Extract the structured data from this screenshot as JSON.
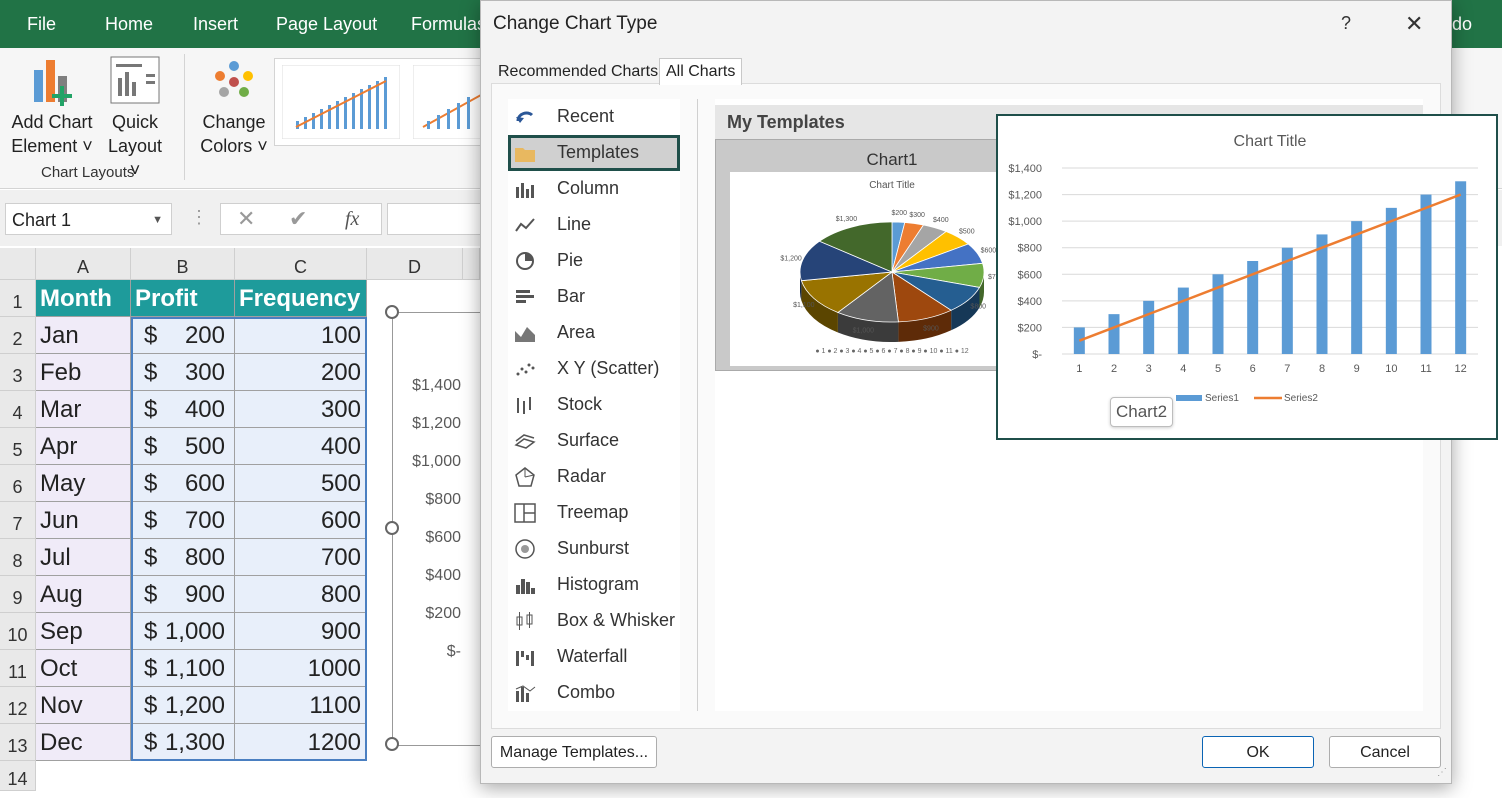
{
  "ribbon": {
    "tabs": [
      "File",
      "Home",
      "Insert",
      "Page Layout",
      "Formulas"
    ],
    "right_partial": "do",
    "add_chart_element": [
      "Add Chart",
      "Element ˅"
    ],
    "quick_layout": [
      "Quick",
      "Layout ˅"
    ],
    "change_colors": [
      "Change",
      "Colors ˅"
    ],
    "group_label": "Chart Layouts"
  },
  "formula_bar": {
    "name_box": "Chart 1",
    "fx": "fx"
  },
  "sheet": {
    "columns": [
      "A",
      "B",
      "C",
      "D"
    ],
    "rows": [
      "1",
      "2",
      "3",
      "4",
      "5",
      "6",
      "7",
      "8",
      "9",
      "10",
      "11",
      "12",
      "13",
      "14"
    ],
    "headers": [
      "Month",
      "Profit",
      "Frequency"
    ],
    "months": [
      "Jan",
      "Feb",
      "Mar",
      "Apr",
      "May",
      "Jun",
      "Jul",
      "Aug",
      "Sep",
      "Oct",
      "Nov",
      "Dec"
    ],
    "profit_symbols": [
      "$",
      "$",
      "$",
      "$",
      "$",
      "$",
      "$",
      "$",
      "$",
      "$",
      "$",
      "$"
    ],
    "profit_values": [
      "200",
      "300",
      "400",
      "500",
      "600",
      "700",
      "800",
      "900",
      "1,000",
      "1,100",
      "1,200",
      "1,300"
    ],
    "frequency": [
      "100",
      "200",
      "300",
      "400",
      "500",
      "600",
      "700",
      "800",
      "900",
      "1000",
      "1100",
      "1200"
    ],
    "embedded_axis": [
      "$1,400",
      "$1,200",
      "$1,000",
      "$800",
      "$600",
      "$400",
      "$200",
      "$-"
    ]
  },
  "dialog": {
    "title": "Change Chart Type",
    "help": "?",
    "close": "✕",
    "tabs": [
      "Recommended Charts",
      "All Charts"
    ],
    "chart_types": [
      "Recent",
      "Templates",
      "Column",
      "Line",
      "Pie",
      "Bar",
      "Area",
      "X Y (Scatter)",
      "Stock",
      "Surface",
      "Radar",
      "Treemap",
      "Sunburst",
      "Histogram",
      "Box & Whisker",
      "Waterfall",
      "Combo"
    ],
    "selected_type": "Templates",
    "section_title": "My Templates",
    "template1_name": "Chart1",
    "template1_chart_title": "Chart Title",
    "pie_labels": [
      "$200",
      "$300",
      "$400",
      "$500",
      "$600",
      "$700",
      "$800",
      "$900",
      "$1,000",
      "$1,100",
      "$1,200",
      "$1,300"
    ],
    "pie_legend": "● 1  ● 2  ● 3  ● 4  ● 5  ● 6  ● 7  ● 8  ● 9  ● 10  ● 11  ● 12",
    "manage_templates": "Manage Templates...",
    "ok": "OK",
    "cancel": "Cancel"
  },
  "tooltip": "Chart2",
  "chart_data": {
    "type": "bar",
    "title": "Chart Title",
    "categories": [
      "1",
      "2",
      "3",
      "4",
      "5",
      "6",
      "7",
      "8",
      "9",
      "10",
      "11",
      "12"
    ],
    "series": [
      {
        "name": "Series1",
        "type": "bar",
        "values": [
          200,
          300,
          400,
          500,
          600,
          700,
          800,
          900,
          1000,
          1100,
          1200,
          1300
        ],
        "color": "#5b9bd5"
      },
      {
        "name": "Series2",
        "type": "line",
        "values": [
          100,
          200,
          300,
          400,
          500,
          600,
          700,
          800,
          900,
          1000,
          1100,
          1200
        ],
        "color": "#ed7d31"
      }
    ],
    "ylim": [
      0,
      1400
    ],
    "yticks": [
      "$-",
      "$200",
      "$400",
      "$600",
      "$800",
      "$1,000",
      "$1,200",
      "$1,400"
    ],
    "grid": true,
    "legend": "bottom"
  }
}
